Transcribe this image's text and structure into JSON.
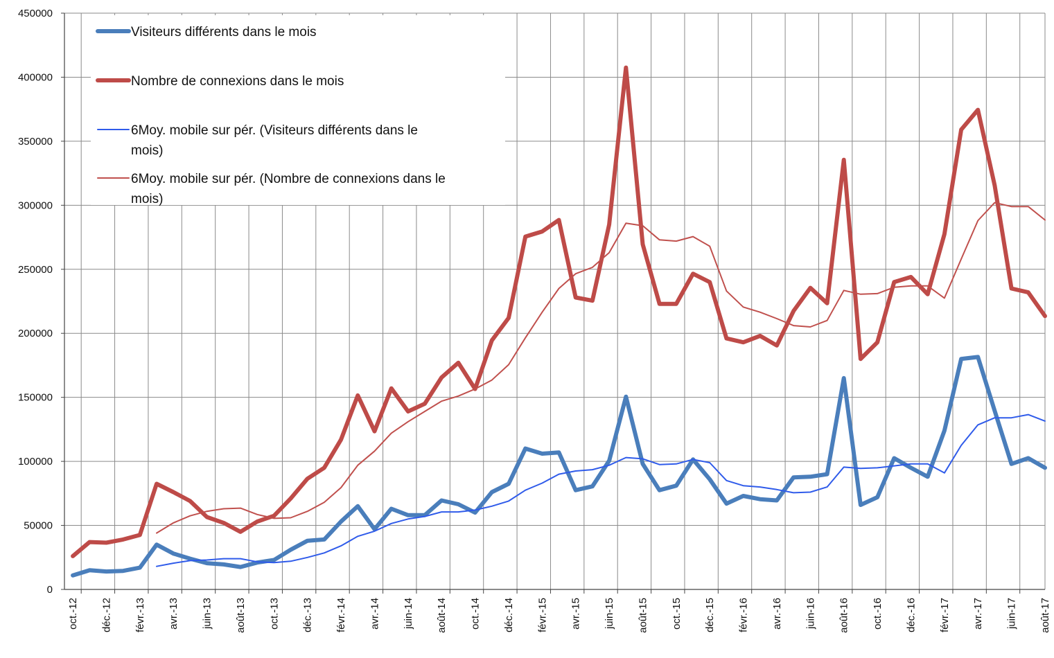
{
  "chart_data": {
    "type": "line",
    "title": "",
    "xlabel": "",
    "ylabel": "",
    "ylim": [
      0,
      450000
    ],
    "yticks": [
      0,
      50000,
      100000,
      150000,
      200000,
      250000,
      300000,
      350000,
      400000,
      450000
    ],
    "grid": true,
    "legend_position": "top-left",
    "x": [
      "oct.-12",
      "nov.-12",
      "déc.-12",
      "janv.-13",
      "févr.-13",
      "mars-13",
      "avr.-13",
      "mai-13",
      "juin-13",
      "juil.-13",
      "août-13",
      "sept.-13",
      "oct.-13",
      "nov.-13",
      "déc.-13",
      "janv.-14",
      "févr.-14",
      "mars-14",
      "avr.-14",
      "mai-14",
      "juin-14",
      "juil.-14",
      "août-14",
      "sept.-14",
      "oct.-14",
      "nov.-14",
      "déc.-14",
      "janv.-15",
      "févr.-15",
      "mars-15",
      "avr.-15",
      "mai-15",
      "juin-15",
      "juil.-15",
      "août-15",
      "sept.-15",
      "oct.-15",
      "nov.-15",
      "déc.-15",
      "janv.-16",
      "févr.-16",
      "mars-16",
      "avr.-16",
      "mai-16",
      "juin-16",
      "juil.-16",
      "août-16",
      "sept.-16",
      "oct.-16",
      "nov.-16",
      "déc.-16",
      "janv.-17",
      "févr.-17",
      "mars-17",
      "avr.-17",
      "mai-17",
      "juin-17",
      "juil.-17",
      "août-17"
    ],
    "tick_labels": [
      "oct.-12",
      "déc.-12",
      "févr.-13",
      "avr.-13",
      "juin-13",
      "août-13",
      "oct.-13",
      "déc.-13",
      "févr.-14",
      "avr.-14",
      "juin-14",
      "août-14",
      "oct.-14",
      "déc.-14",
      "févr.-15",
      "avr.-15",
      "juin-15",
      "août-15",
      "oct.-15",
      "déc.-15",
      "févr.-16",
      "avr.-16",
      "juin-16",
      "août-16",
      "oct.-16",
      "déc.-16",
      "févr.-17",
      "avr.-17",
      "juin-17",
      "août-17"
    ],
    "series": [
      {
        "name": "Visiteurs différents dans le mois",
        "color": "#4a7ebb",
        "values": [
          11000,
          15000,
          14000,
          14500,
          17000,
          35000,
          28000,
          24000,
          20500,
          19500,
          17500,
          21000,
          23000,
          31000,
          38000,
          39000,
          53000,
          65000,
          47000,
          63000,
          58000,
          58000,
          69500,
          66500,
          60000,
          76000,
          82500,
          110000,
          106000,
          107000,
          77500,
          80500,
          100500,
          150500,
          98000,
          77500,
          81000,
          101500,
          86000,
          67000,
          73000,
          70500,
          69500,
          87500,
          88000,
          90000,
          165000,
          66000,
          72000,
          102500,
          95000,
          88000,
          124000,
          180000,
          181500,
          139500,
          98000,
          102500,
          95000
        ]
      },
      {
        "name": "Nombre de connexions dans le mois",
        "color": "#be4b48",
        "values": [
          26000,
          37000,
          36500,
          39000,
          42500,
          82500,
          76000,
          69000,
          56500,
          52000,
          45000,
          53000,
          57500,
          71000,
          86500,
          95000,
          117000,
          151500,
          123500,
          157000,
          139000,
          145000,
          165500,
          177000,
          156500,
          194500,
          212000,
          275500,
          279500,
          288500,
          228000,
          225500,
          285000,
          407500,
          269500,
          223000,
          223000,
          246500,
          240000,
          196000,
          193000,
          198000,
          190500,
          217500,
          235500,
          223500,
          335500,
          180000,
          193000,
          240000,
          244000,
          230500,
          277500,
          359000,
          374500,
          315500,
          235000,
          232000,
          213500
        ]
      },
      {
        "name": "6Moy. mobile sur pér. (Visiteurs différents dans le mois)",
        "color": "#2f5bea",
        "values": [
          null,
          null,
          null,
          null,
          null,
          18000,
          20500,
          22500,
          23000,
          24000,
          24000,
          21500,
          21000,
          22000,
          25000,
          28500,
          34000,
          41500,
          45500,
          51500,
          55000,
          57000,
          60500,
          60500,
          62000,
          65000,
          69000,
          77500,
          83000,
          90000,
          92500,
          93500,
          97000,
          103000,
          102000,
          97500,
          98000,
          101500,
          99000,
          85000,
          81000,
          80000,
          78000,
          75500,
          76000,
          80000,
          95500,
          94500,
          95000,
          96500,
          98000,
          98000,
          91000,
          112500,
          128500,
          134000,
          134000,
          136500,
          131500
        ]
      },
      {
        "name": "6Moy. mobile sur pér. (Nombre de connexions dans le mois)",
        "color": "#c0504d",
        "values": [
          null,
          null,
          null,
          null,
          null,
          44000,
          52000,
          57500,
          61000,
          63000,
          63500,
          58500,
          55500,
          56000,
          61000,
          68000,
          79500,
          97000,
          108000,
          122000,
          131000,
          139000,
          147000,
          151000,
          156500,
          163500,
          175500,
          196500,
          216500,
          235000,
          246500,
          251500,
          263000,
          286000,
          284000,
          273000,
          272000,
          275500,
          268000,
          233000,
          220500,
          216500,
          211500,
          206000,
          205000,
          210000,
          233500,
          230500,
          231000,
          236000,
          237000,
          237000,
          227500,
          258000,
          288000,
          302000,
          299000,
          299000,
          288500
        ]
      }
    ]
  }
}
